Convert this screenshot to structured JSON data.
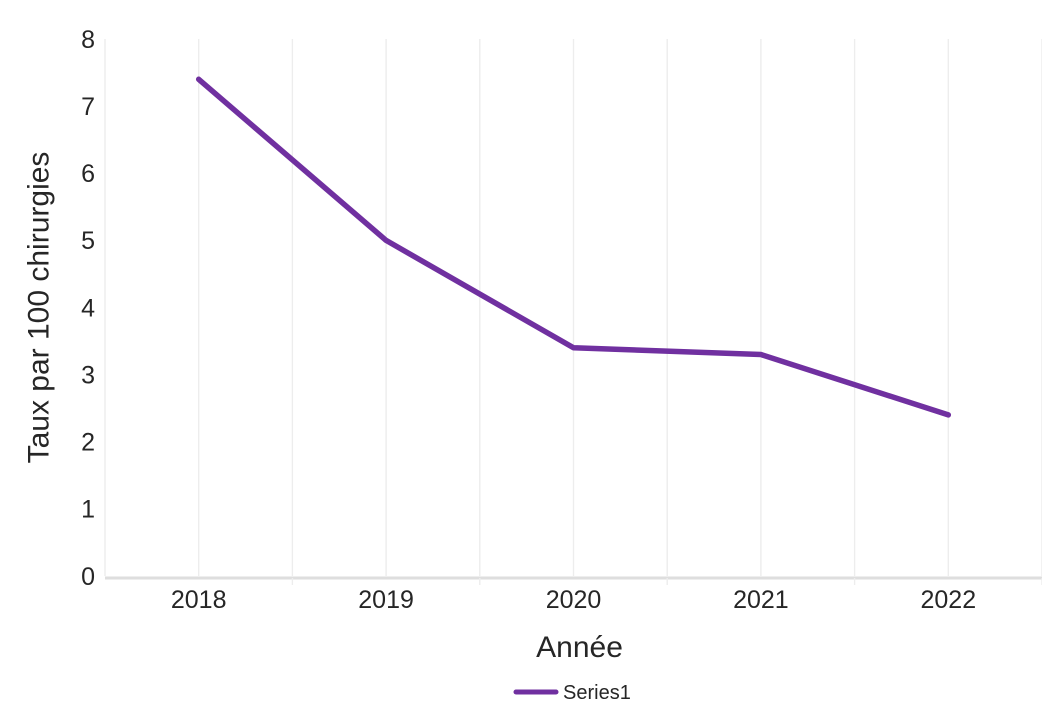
{
  "chart_data": {
    "type": "line",
    "title": "",
    "categories": [
      "2018",
      "2019",
      "2020",
      "2021",
      "2022"
    ],
    "series": [
      {
        "name": "Series1",
        "color": "#7030a0",
        "values": [
          7.4,
          5.0,
          3.4,
          3.3,
          2.4
        ]
      }
    ],
    "xlabel": "Année",
    "ylabel": "Taux par 100 chirurgies",
    "ylim": [
      0,
      8
    ],
    "yticks": [
      0,
      1,
      2,
      3,
      4,
      5,
      6,
      7,
      8
    ],
    "grid": {
      "vertical": true,
      "horizontal": false,
      "gridline_color": "#ededed"
    },
    "axis_line_color": "#dedede",
    "tick_label_color": "#262626",
    "legend": {
      "position": "bottom-center",
      "entries": [
        {
          "label": "Series1",
          "swatch_color": "#7030a0"
        }
      ]
    }
  }
}
